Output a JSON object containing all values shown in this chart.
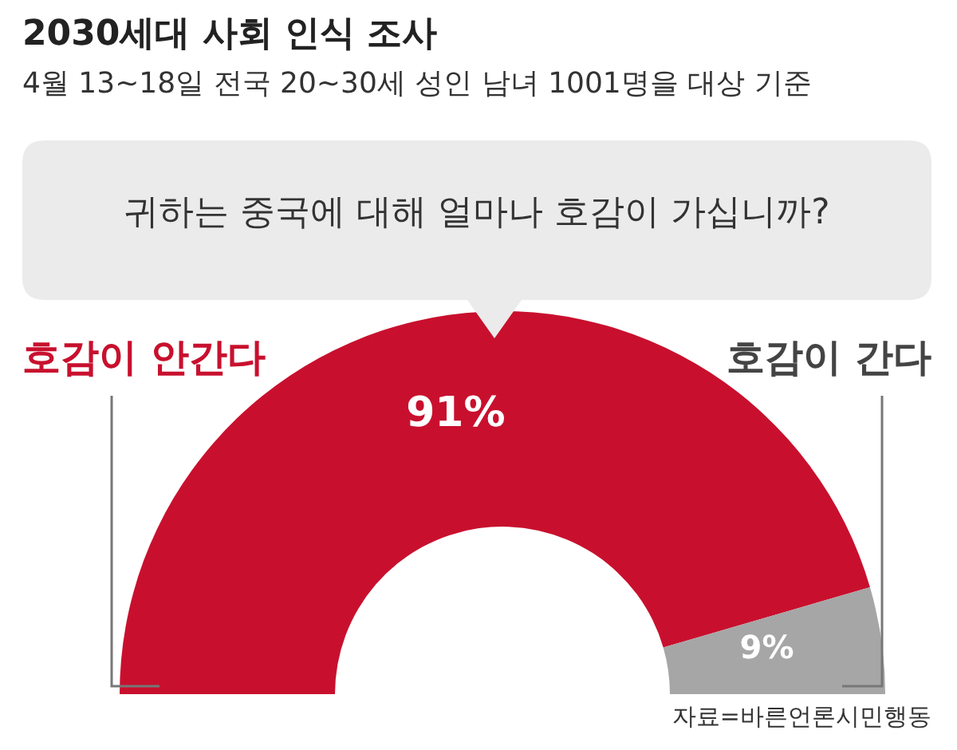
{
  "chart_data": {
    "type": "donut",
    "title": "2030세대 사회 인식 조사",
    "subtitle": "4월 13~18일 전국 20~30세 성인 남녀 1001명을 대상 기준",
    "annotations": [
      "귀하는 중국에 대해 얼마나 호감이 가십니까?",
      "자료=바른언론시민행동"
    ],
    "categories": [
      "호감이 안간다",
      "호감이 간다"
    ],
    "values": [
      91,
      9
    ],
    "colors": [
      "#c8102e",
      "#a6a6a6"
    ],
    "value_labels": [
      "91%",
      "9%"
    ]
  }
}
